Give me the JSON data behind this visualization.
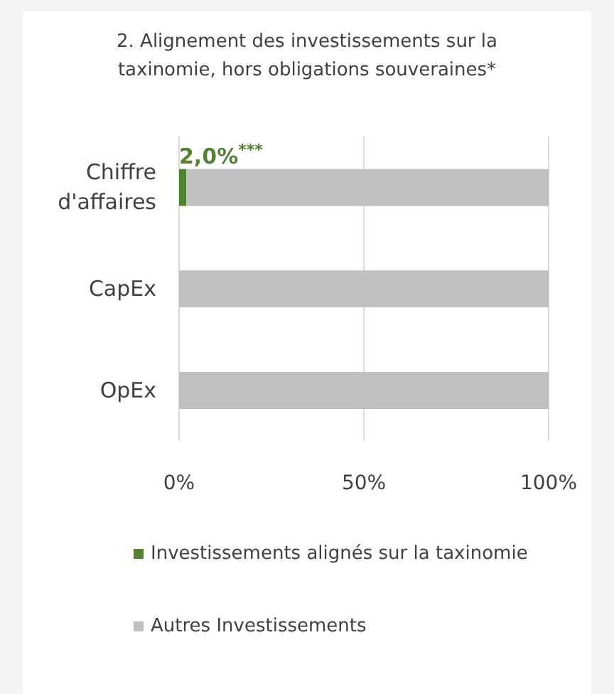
{
  "chart_data": {
    "type": "bar",
    "title": "2. Alignement des investissements sur la taxinomie, hors obligations souveraines*",
    "orientation": "horizontal",
    "stacked": true,
    "categories": [
      "Chiffre d'affaires",
      "CapEx",
      "OpEx"
    ],
    "series": [
      {
        "name": "Investissements alignés sur la taxinomie",
        "color": "#548235",
        "values": [
          2.0,
          0,
          0
        ],
        "value_labels": [
          "2,0%$^{***}$",
          null,
          null
        ]
      },
      {
        "name": "Autres Investissements",
        "color": "#bfbfbf",
        "values": [
          98,
          100,
          100
        ]
      }
    ],
    "xlim": [
      0,
      100
    ],
    "xticks": [
      {
        "value": 0,
        "label": "0%"
      },
      {
        "value": 50,
        "label": "50%"
      },
      {
        "value": 100,
        "label": "100%"
      }
    ],
    "grid": "x",
    "legend": "bottom"
  }
}
